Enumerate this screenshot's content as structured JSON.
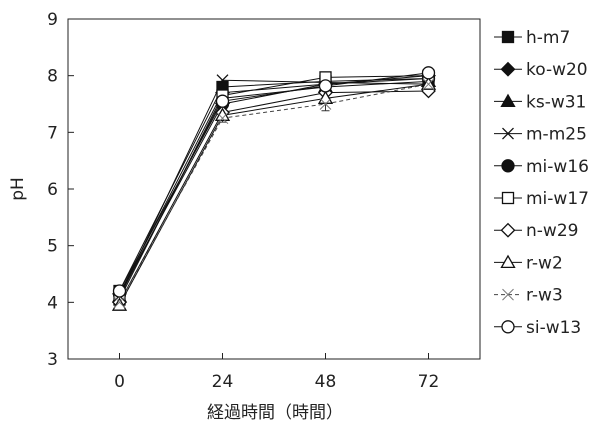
{
  "chart_data": {
    "type": "line",
    "title": "",
    "xlabel": "経過時間（時間）",
    "ylabel": "pH",
    "x": [
      0,
      24,
      48,
      72
    ],
    "x_ticks": [
      "0",
      "24",
      "48",
      "72"
    ],
    "y_ticks": [
      "3",
      "4",
      "5",
      "6",
      "7",
      "8",
      "9"
    ],
    "xlim": [
      -12,
      84
    ],
    "ylim": [
      3,
      9
    ],
    "grid": false,
    "legend_position": "right",
    "series": [
      {
        "name": "h-m7",
        "marker": "square-filled",
        "dash": "solid",
        "values": [
          4.2,
          7.8,
          7.9,
          7.95
        ]
      },
      {
        "name": "ko-w20",
        "marker": "diamond-filled",
        "dash": "solid",
        "values": [
          4.15,
          7.7,
          7.85,
          8.0
        ]
      },
      {
        "name": "ks-w31",
        "marker": "triangle-filled",
        "dash": "solid",
        "values": [
          4.1,
          7.6,
          7.8,
          7.9
        ]
      },
      {
        "name": "m-m25",
        "marker": "x",
        "dash": "solid",
        "values": [
          4.1,
          7.92,
          7.88,
          7.85
        ]
      },
      {
        "name": "mi-w16",
        "marker": "circle-filled",
        "dash": "solid",
        "values": [
          4.15,
          7.5,
          7.85,
          7.95
        ]
      },
      {
        "name": "mi-w17",
        "marker": "square-open",
        "dash": "solid",
        "values": [
          4.05,
          7.65,
          7.97,
          8.0
        ]
      },
      {
        "name": "n-w29",
        "marker": "diamond-open",
        "dash": "solid",
        "values": [
          4.0,
          7.35,
          7.7,
          7.73
        ]
      },
      {
        "name": "r-w2",
        "marker": "triangle-open",
        "dash": "solid",
        "values": [
          3.95,
          7.3,
          7.6,
          7.85
        ]
      },
      {
        "name": "r-w3",
        "marker": "x-light",
        "dash": "dashed",
        "values": [
          4.0,
          7.25,
          7.5,
          7.85
        ]
      },
      {
        "name": "si-w13",
        "marker": "circle-open",
        "dash": "solid",
        "values": [
          4.2,
          7.55,
          7.82,
          8.05
        ]
      }
    ],
    "error_bars": [
      {
        "x": 48,
        "low": 7.38,
        "high": 7.82
      },
      {
        "x": 24,
        "low": 7.18,
        "high": 7.85
      }
    ]
  }
}
